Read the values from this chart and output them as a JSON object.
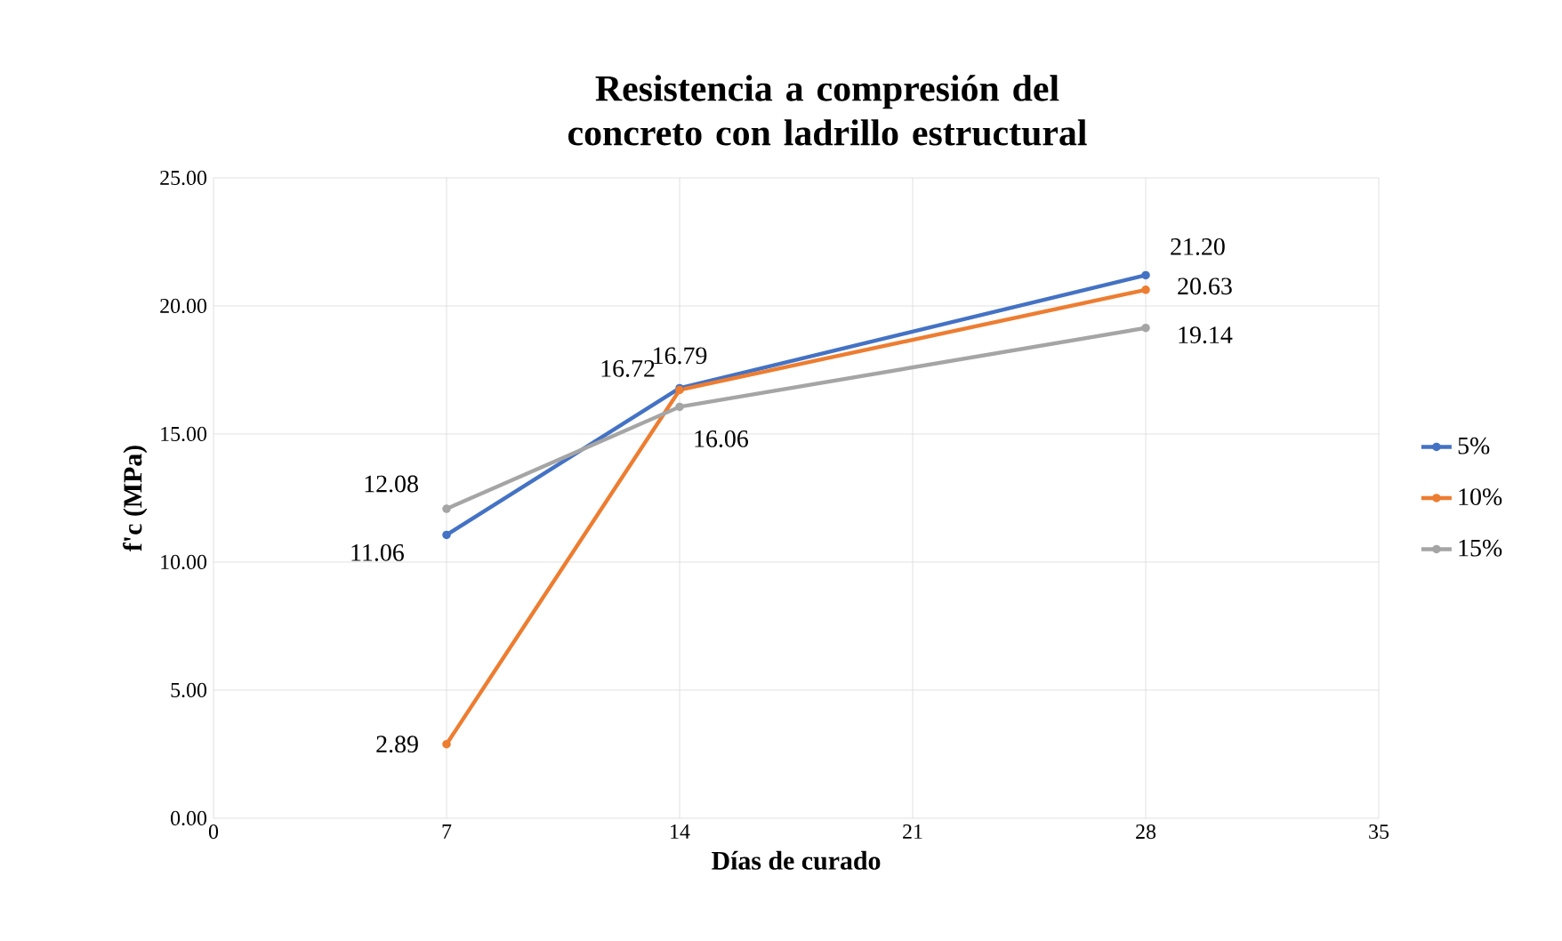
{
  "chart_data": {
    "type": "line",
    "title": "Resistencia a compresión del concreto con ladrillo estructural",
    "xlabel": "Días de curado",
    "ylabel": "f'c (MPa)",
    "x": [
      7,
      14,
      28
    ],
    "series": [
      {
        "name": "5%",
        "color": "#4472c4",
        "values": [
          11.06,
          16.79,
          21.2
        ],
        "value_labels": [
          "11.06",
          "16.79",
          "21.20"
        ]
      },
      {
        "name": "10%",
        "color": "#ed7d31",
        "values": [
          2.89,
          16.72,
          20.63
        ],
        "value_labels": [
          "2.89",
          "16.72",
          "20.63"
        ]
      },
      {
        "name": "15%",
        "color": "#a5a5a5",
        "values": [
          12.08,
          16.06,
          19.14
        ],
        "value_labels": [
          "12.08",
          "16.06",
          "19.14"
        ]
      }
    ],
    "xlim": [
      0,
      35
    ],
    "xticks": [
      0,
      7,
      14,
      21,
      28,
      35
    ],
    "ylim": [
      0,
      25
    ],
    "yticks": [
      {
        "value": 0,
        "label": "0.00"
      },
      {
        "value": 5,
        "label": "5.00"
      },
      {
        "value": 10,
        "label": "10.00"
      },
      {
        "value": 15,
        "label": "15.00"
      },
      {
        "value": 20,
        "label": "20.00"
      },
      {
        "value": 25,
        "label": "25.00"
      }
    ],
    "grid": true,
    "legend": "right",
    "marker": "circle",
    "line_style": "solid"
  }
}
